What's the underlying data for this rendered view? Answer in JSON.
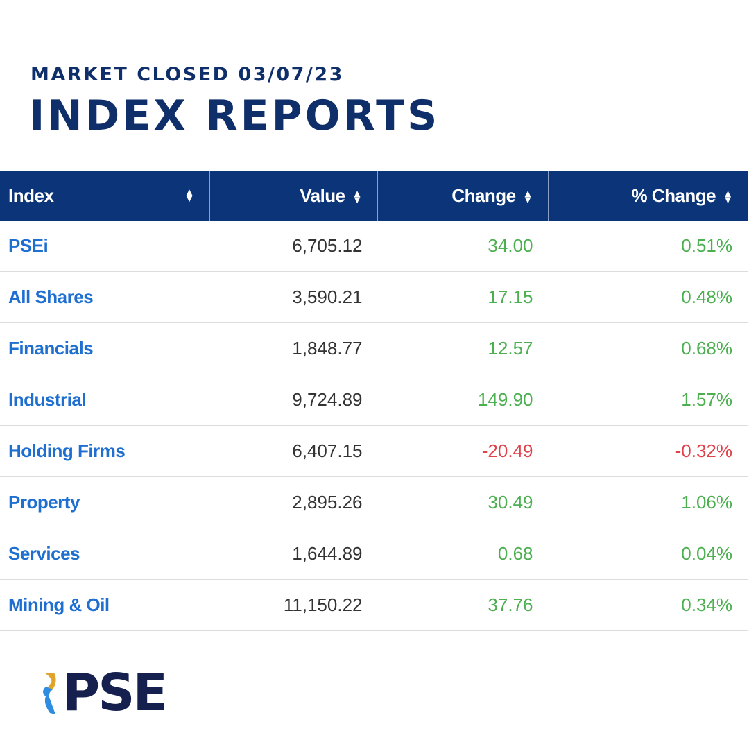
{
  "header": {
    "subtitle": "MARKET CLOSED 03/07/23",
    "title": "INDEX REPORTS"
  },
  "table": {
    "columns": [
      "Index",
      "Value",
      "Change",
      "% Change"
    ],
    "sort_icon": "sort-up-down-icon",
    "rows": [
      {
        "index": "PSEi",
        "value": "6,705.12",
        "change": "34.00",
        "pct": "0.51%",
        "dir": "pos"
      },
      {
        "index": "All Shares",
        "value": "3,590.21",
        "change": "17.15",
        "pct": "0.48%",
        "dir": "pos"
      },
      {
        "index": "Financials",
        "value": "1,848.77",
        "change": "12.57",
        "pct": "0.68%",
        "dir": "pos"
      },
      {
        "index": "Industrial",
        "value": "9,724.89",
        "change": "149.90",
        "pct": "1.57%",
        "dir": "pos"
      },
      {
        "index": "Holding Firms",
        "value": "6,407.15",
        "change": "-20.49",
        "pct": "-0.32%",
        "dir": "neg"
      },
      {
        "index": "Property",
        "value": "2,895.26",
        "change": "30.49",
        "pct": "1.06%",
        "dir": "pos"
      },
      {
        "index": "Services",
        "value": "1,644.89",
        "change": "0.68",
        "pct": "0.04%",
        "dir": "pos"
      },
      {
        "index": "Mining & Oil",
        "value": "11,150.22",
        "change": "37.76",
        "pct": "0.34%",
        "dir": "pos"
      }
    ]
  },
  "colors": {
    "header_bg": "#0b3578",
    "title": "#0f2f6b",
    "link": "#1f6fd1",
    "positive": "#4caf50",
    "negative": "#e0424b"
  },
  "logo": {
    "text": "PSE"
  }
}
